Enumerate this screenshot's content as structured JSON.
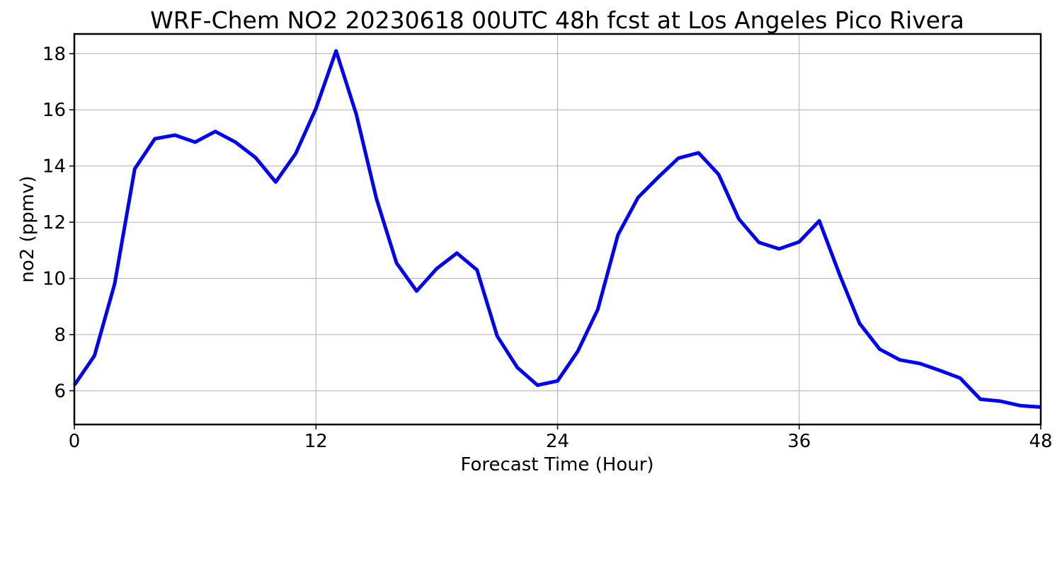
{
  "chart_data": {
    "type": "line",
    "title": "WRF-Chem NO2  20230618 00UTC 48h fcst at Los Angeles Pico Rivera",
    "xlabel": "Forecast Time (Hour)",
    "ylabel": "no2  (ppmv)",
    "xlim": [
      0,
      48
    ],
    "ylim": [
      4.8,
      18.7
    ],
    "xticks": [
      0,
      12,
      24,
      36,
      48
    ],
    "yticks": [
      6,
      8,
      10,
      12,
      14,
      16,
      18
    ],
    "grid": true,
    "series": [
      {
        "color": "#0000ff",
        "x": [
          0,
          1,
          2,
          3,
          4,
          5,
          6,
          7,
          8,
          9,
          10,
          11,
          12,
          13,
          14,
          15,
          16,
          17,
          18,
          19,
          20,
          21,
          22,
          23,
          24,
          25,
          26,
          27,
          28,
          29,
          30,
          31,
          32,
          33,
          34,
          35,
          36,
          37,
          38,
          39,
          40,
          41,
          42,
          43,
          44,
          45,
          46,
          47,
          48
        ],
        "values": [
          6.2,
          7.25,
          9.8,
          13.9,
          14.97,
          15.1,
          14.85,
          15.23,
          14.85,
          14.3,
          13.43,
          14.45,
          16.05,
          18.1,
          15.85,
          12.85,
          10.55,
          9.55,
          10.35,
          10.9,
          10.3,
          7.95,
          6.83,
          6.2,
          6.35,
          7.4,
          8.9,
          11.55,
          12.88,
          13.6,
          14.28,
          14.47,
          13.7,
          12.12,
          11.28,
          11.05,
          11.3,
          12.05,
          10.15,
          8.4,
          7.48,
          7.1,
          6.97,
          6.72,
          6.45,
          5.7,
          5.63,
          5.47,
          5.42
        ]
      }
    ]
  }
}
